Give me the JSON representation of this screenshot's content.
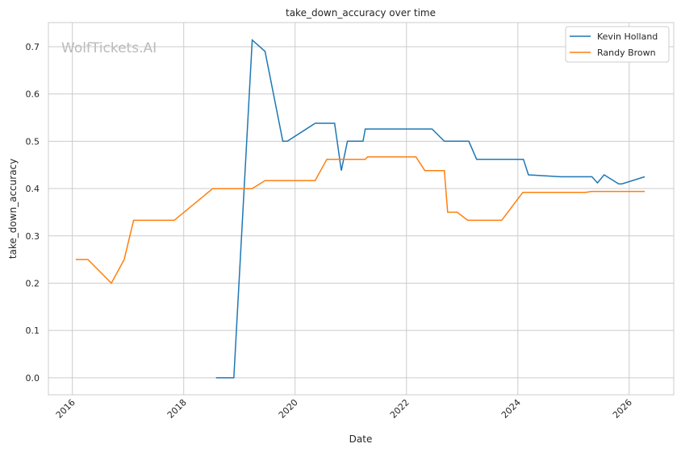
{
  "chart_data": {
    "type": "line",
    "title": "take_down_accuracy over time",
    "xlabel": "Date",
    "ylabel": "take_down_accuracy",
    "xlim": [
      2015.57,
      2026.8
    ],
    "ylim": [
      -0.036,
      0.751
    ],
    "xticks": [
      2016,
      2018,
      2020,
      2022,
      2024,
      2026
    ],
    "xtick_labels": [
      "2016",
      "2018",
      "2020",
      "2022",
      "2024",
      "2026"
    ],
    "yticks": [
      0,
      0.1,
      0.2,
      0.3,
      0.4,
      0.5,
      0.6,
      0.7
    ],
    "ytick_labels": [
      "0.0",
      "0.1",
      "0.2",
      "0.3",
      "0.4",
      "0.5",
      "0.6",
      "0.7"
    ],
    "grid": true,
    "legend_position": "top-right",
    "watermark": "WolfTickets.AI",
    "series": [
      {
        "name": "Kevin Holland",
        "color": "#1f77b4",
        "x": [
          2018.58,
          2018.9,
          2019.23,
          2019.46,
          2019.78,
          2019.86,
          2020.36,
          2020.71,
          2020.83,
          2020.94,
          2021.22,
          2021.26,
          2022.46,
          2022.68,
          2023.12,
          2023.26,
          2024.1,
          2024.19,
          2024.77,
          2025.33,
          2025.43,
          2025.55,
          2025.81,
          2025.87,
          2026.28
        ],
        "y": [
          0,
          0,
          0.714,
          0.69,
          0.5,
          0.5,
          0.538,
          0.538,
          0.438,
          0.5,
          0.5,
          0.526,
          0.526,
          0.5,
          0.5,
          0.462,
          0.462,
          0.429,
          0.425,
          0.425,
          0.412,
          0.429,
          0.41,
          0.41,
          0.425
        ]
      },
      {
        "name": "Randy Brown",
        "color": "#ff7f0e",
        "x": [
          2016.06,
          2016.28,
          2016.7,
          2016.93,
          2017.1,
          2017.83,
          2018.52,
          2019.23,
          2019.46,
          2020.36,
          2020.57,
          2021.26,
          2021.3,
          2022.17,
          2022.33,
          2022.68,
          2022.74,
          2022.91,
          2023.1,
          2023.71,
          2024.09,
          2025.22,
          2025.32,
          2026.28
        ],
        "y": [
          0.25,
          0.25,
          0.2,
          0.25,
          0.333,
          0.333,
          0.4,
          0.4,
          0.417,
          0.417,
          0.462,
          0.462,
          0.467,
          0.467,
          0.438,
          0.438,
          0.35,
          0.35,
          0.333,
          0.333,
          0.392,
          0.392,
          0.394,
          0.394
        ]
      }
    ]
  }
}
